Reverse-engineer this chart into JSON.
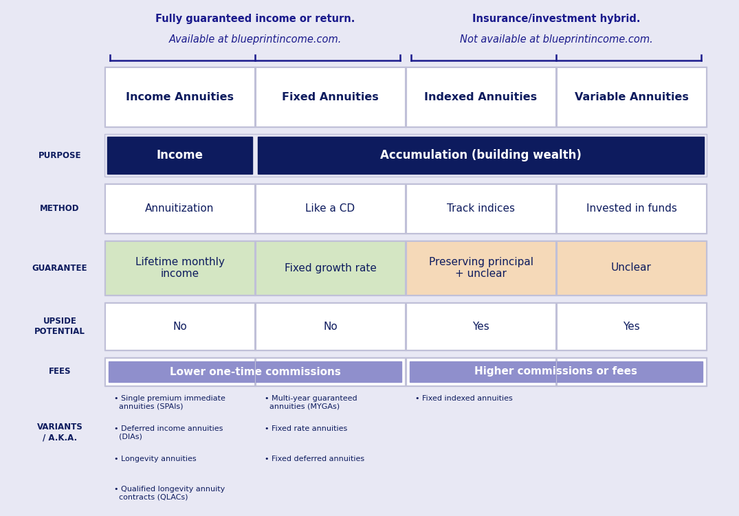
{
  "bg_color": "#e8e8f4",
  "header_text_color": "#1a1a8c",
  "dark_navy": "#0d1b5e",
  "white": "#ffffff",
  "green_bg": "#d4e6c3",
  "peach_bg": "#f5d9b8",
  "purple_bg": "#8f8fcc",
  "cell_bg": "#f0f0fa",
  "grid_color": "#c0c0d8",
  "header1_text": [
    "Fully guaranteed income or return.",
    "Available at blueprintincome.com."
  ],
  "header2_text": [
    "Insurance/investment hybrid.",
    "Not available at blueprintincome.com."
  ],
  "col_headers": [
    "Income Annuities",
    "Fixed Annuities",
    "Indexed Annuities",
    "Variable Annuities"
  ],
  "purpose_col1": "Income",
  "purpose_col234": "Accumulation (building wealth)",
  "method_vals": [
    "Annuitization",
    "Like a CD",
    "Track indices",
    "Invested in funds"
  ],
  "guarantee_vals": [
    "Lifetime monthly\nincome",
    "Fixed growth rate",
    "Preserving principal\n+ unclear",
    "Unclear"
  ],
  "upside_vals": [
    "No",
    "No",
    "Yes",
    "Yes"
  ],
  "fees_col12": "Lower one-time commissions",
  "fees_col34": "Higher commissions or fees",
  "variants_col1": [
    "• Single premium immediate\n  annuities (SPAIs)",
    "• Deferred income annuities\n  (DIAs)",
    "• Longevity annuities",
    "• Qualified longevity annuity\n  contracts (QLACs)"
  ],
  "variants_col2": [
    "• Multi-year guaranteed\n  annuities (MYGAs)",
    "• Fixed rate annuities",
    "• Fixed deferred annuities"
  ],
  "variants_col3": [
    "• Fixed indexed annuities"
  ],
  "label_fontsize": 8.5,
  "header_fontsize": 10.5,
  "col_header_fontsize": 11.5,
  "cell_fontsize": 11,
  "variant_fontsize": 8.0
}
